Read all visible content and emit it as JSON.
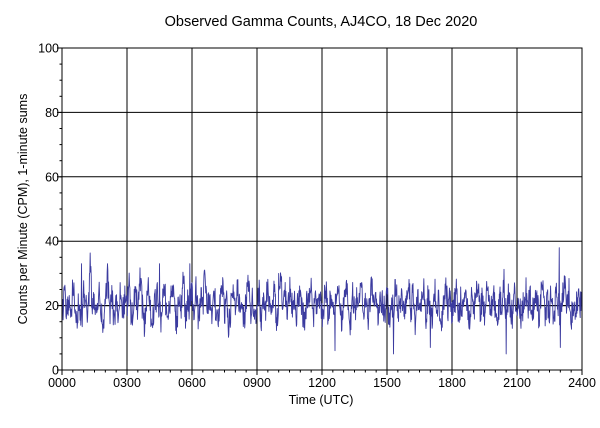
{
  "chart_data": {
    "type": "line",
    "title": "Observed Gamma Counts, AJ4CO, 18 Dec 2020",
    "xlabel": "Time (UTC)",
    "ylabel": "Counts per Minute (CPM), 1-minute sums",
    "xlim": [
      0,
      24
    ],
    "ylim": [
      0,
      100
    ],
    "x_ticks": [
      {
        "v": 0,
        "label": "0000"
      },
      {
        "v": 3,
        "label": "0300"
      },
      {
        "v": 6,
        "label": "0600"
      },
      {
        "v": 9,
        "label": "0900"
      },
      {
        "v": 12,
        "label": "1200"
      },
      {
        "v": 15,
        "label": "1500"
      },
      {
        "v": 18,
        "label": "1800"
      },
      {
        "v": 21,
        "label": "2100"
      },
      {
        "v": 24,
        "label": "2400"
      }
    ],
    "y_ticks": [
      0,
      20,
      40,
      60,
      80,
      100
    ],
    "grid": true,
    "reference_line": {
      "y": 20
    },
    "line_color": "#3b3b9f",
    "series": [
      {
        "name": "",
        "x_step_hours": 0.1,
        "values": [
          15,
          25,
          18,
          21,
          14,
          28,
          19,
          17,
          22,
          13,
          26,
          20,
          16,
          33,
          18,
          22,
          15,
          24,
          19,
          12,
          21,
          29,
          17,
          23,
          16,
          20,
          14,
          25,
          18,
          22,
          19,
          27,
          15,
          21,
          24,
          17,
          30,
          20,
          13,
          22,
          26,
          18,
          16,
          21,
          23,
          19,
          14,
          28,
          20,
          17,
          22,
          25,
          18,
          15,
          23,
          20,
          29,
          16,
          21,
          19,
          24,
          17,
          26,
          14,
          22,
          20,
          31,
          18,
          23,
          16,
          25,
          19,
          15,
          21,
          27,
          18,
          22,
          12,
          20,
          24,
          17,
          26,
          19,
          23,
          15,
          21,
          28,
          18,
          22,
          16,
          20,
          25,
          13,
          22,
          19,
          27,
          17,
          21,
          24,
          16,
          20,
          29,
          18,
          23,
          15,
          26,
          19,
          22,
          17,
          21,
          25,
          18,
          14,
          23,
          20,
          28,
          16,
          22,
          19,
          24,
          17,
          21,
          26,
          15,
          23,
          20,
          18,
          27,
          22,
          16,
          19,
          25,
          21,
          13,
          24,
          18,
          22,
          20,
          30,
          17,
          23,
          15,
          21,
          26,
          19,
          22,
          16,
          24,
          20,
          18,
          25,
          14,
          22,
          19,
          27,
          17,
          21,
          23,
          16,
          20,
          28,
          18,
          24,
          15,
          22,
          19,
          21,
          26,
          17,
          23,
          20,
          16,
          25,
          18,
          22,
          14,
          21,
          27,
          19,
          23,
          17,
          20,
          24,
          16,
          22,
          18,
          26,
          20,
          15,
          23,
          19,
          21,
          28,
          17,
          22,
          16,
          25,
          20,
          18,
          24,
          19,
          14,
          22,
          21,
          27,
          17,
          23,
          20,
          16,
          25,
          18,
          22,
          15,
          21,
          26,
          19,
          23,
          17,
          20,
          24,
          16,
          22,
          28,
          18,
          21,
          19,
          25,
          15,
          23,
          20,
          17,
          22,
          26,
          18,
          24,
          16,
          21,
          19,
          23,
          20,
          22,
          25,
          17,
          21,
          19,
          24,
          16,
          23,
          20,
          18,
          22,
          27,
          15,
          21,
          24,
          19,
          17,
          23,
          20,
          26,
          16,
          22,
          18,
          25,
          21,
          17,
          23,
          19,
          20,
          22
        ]
      }
    ],
    "highlights": [
      {
        "x": 0.9,
        "y": 33
      },
      {
        "x": 4.5,
        "y": 33
      },
      {
        "x": 5.9,
        "y": 33
      },
      {
        "x": 10.0,
        "y": 30
      },
      {
        "x": 12.6,
        "y": 6
      },
      {
        "x": 15.3,
        "y": 5
      },
      {
        "x": 17.0,
        "y": 7
      },
      {
        "x": 20.5,
        "y": 5
      },
      {
        "x": 22.95,
        "y": 38
      },
      {
        "x": 23.0,
        "y": 7
      }
    ]
  }
}
